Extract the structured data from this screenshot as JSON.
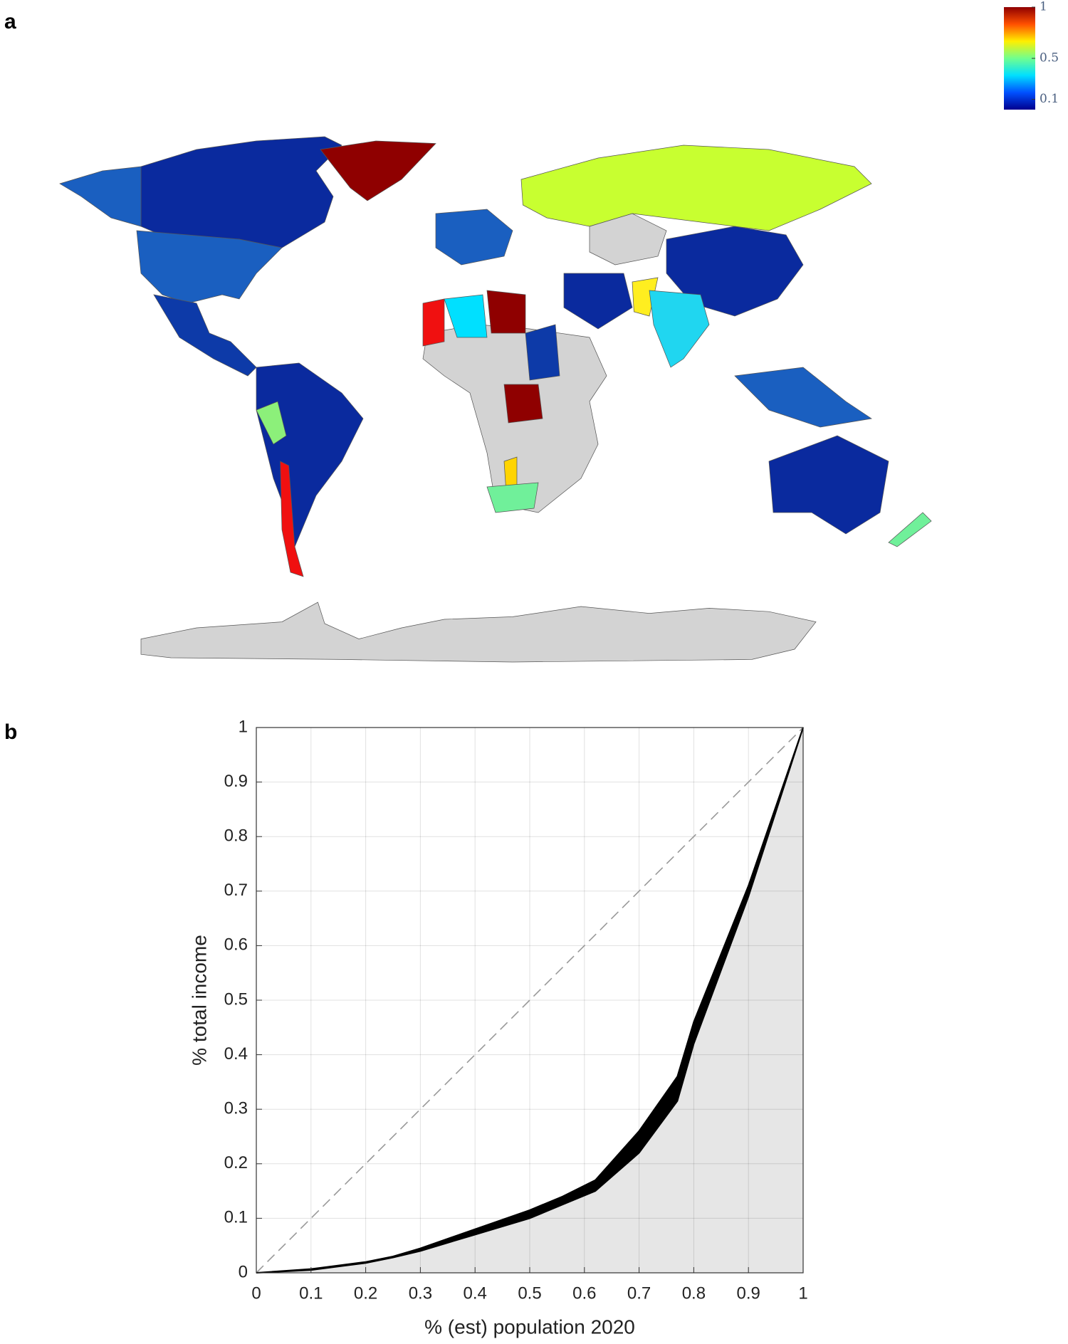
{
  "panel_labels": [
    "a",
    "b"
  ],
  "chart_data": [
    {
      "type": "colorbar",
      "colors": [
        "#00008f",
        "#0050ff",
        "#00dfff",
        "#70ff8f",
        "#ffef00",
        "#ff5000",
        "#8f0000"
      ],
      "clim": [
        0,
        1
      ],
      "ticks": [
        1,
        0.5,
        0.1
      ]
    },
    {
      "type": "band",
      "xlabel": "% (est) population 2020",
      "ylabel": "% total income",
      "x": [
        0,
        0.1,
        0.2,
        0.25,
        0.3,
        0.4,
        0.5,
        0.56,
        0.62,
        0.7,
        0.77,
        0.8,
        0.9,
        1
      ],
      "lower": [
        0,
        0.005,
        0.018,
        0.028,
        0.04,
        0.07,
        0.1,
        0.125,
        0.15,
        0.22,
        0.315,
        0.42,
        0.69,
        1
      ],
      "upper": [
        0,
        0.007,
        0.02,
        0.03,
        0.045,
        0.08,
        0.115,
        0.14,
        0.17,
        0.26,
        0.36,
        0.46,
        0.71,
        1
      ],
      "color": "#000000",
      "fill": "#e6e6e6",
      "xlim": [
        0,
        1
      ],
      "ylim": [
        0,
        1
      ],
      "xticks": [
        0,
        0.1,
        0.2,
        0.3,
        0.4,
        0.5,
        0.6,
        0.7,
        0.8,
        0.9,
        1
      ],
      "yticks": [
        0,
        0.1,
        0.2,
        0.3,
        0.4,
        0.5,
        0.6,
        0.7,
        0.8,
        0.9,
        1
      ],
      "grid": true
    }
  ]
}
